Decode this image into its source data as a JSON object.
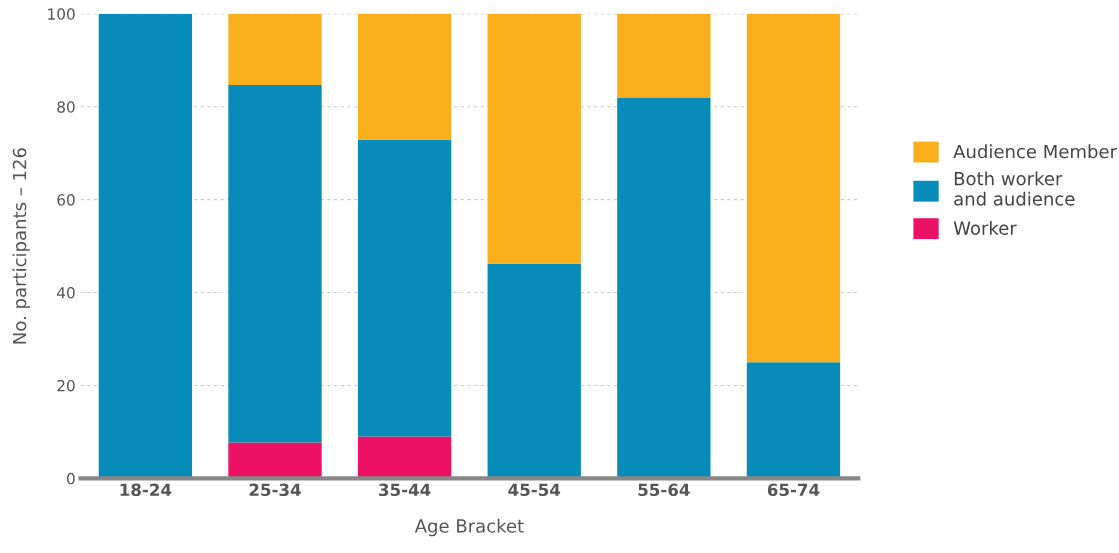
{
  "chart_data": {
    "type": "bar",
    "stacked": true,
    "xlabel": "Age Bracket",
    "ylabel": "No. participants – 126",
    "categories": [
      "18-24",
      "25-34",
      "35-44",
      "45-54",
      "55-64",
      "65-74"
    ],
    "series": [
      {
        "name": "Worker",
        "color": "#ec1164",
        "values": [
          0,
          7.7,
          9,
          0,
          0,
          0
        ]
      },
      {
        "name": "Both worker\nand audience",
        "color": "#078bb9",
        "values": [
          100,
          77,
          63.9,
          46.2,
          81.9,
          25
        ]
      },
      {
        "name": "Audience Member",
        "color": "#f9ae1b",
        "values": [
          0,
          15.3,
          27.1,
          53.8,
          18.1,
          75
        ]
      }
    ],
    "ylim": [
      0,
      100
    ],
    "yticks": [
      0,
      20,
      40,
      60,
      80,
      100
    ],
    "grid": "y",
    "legend": "right"
  }
}
